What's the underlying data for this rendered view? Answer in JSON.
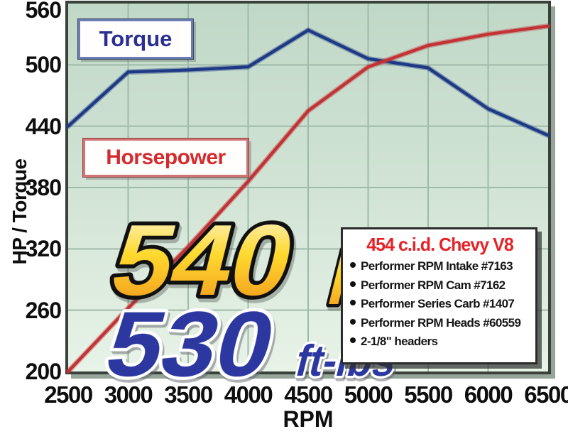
{
  "chart_data": {
    "type": "line",
    "title": "",
    "xlabel": "RPM",
    "ylabel": "HP / Torque",
    "x": [
      2500,
      3000,
      3500,
      4000,
      4500,
      5000,
      5500,
      6000,
      6500
    ],
    "xlim": [
      2500,
      6500
    ],
    "ylim": [
      200,
      560
    ],
    "xticks": [
      2500,
      3000,
      3500,
      4000,
      4500,
      5000,
      5500,
      6000,
      6500
    ],
    "yticks": [
      560,
      500,
      440,
      380,
      320,
      260,
      200
    ],
    "grid": true,
    "legend_position": "inline-labels",
    "series": [
      {
        "name": "Torque",
        "color": "#1d3884",
        "values": [
          440,
          493,
          495,
          498,
          534,
          506,
          497,
          457,
          431
        ]
      },
      {
        "name": "Horsepower",
        "color": "#c23134",
        "values": [
          200,
          262,
          322,
          386,
          455,
          498,
          519,
          530,
          538
        ]
      }
    ]
  },
  "legend": {
    "torque_label": "Torque",
    "horsepower_label": "Horsepower"
  },
  "callouts": {
    "hp_value": "540",
    "hp_unit": "HP",
    "torque_value": "530",
    "torque_unit": "ft-lbs"
  },
  "spec_box": {
    "title": "454 c.i.d. Chevy V8",
    "items": [
      "Performer RPM Intake #7163",
      "Performer RPM Cam #7162",
      "Performer Series Carb #1407",
      "Performer RPM Heads #60559",
      "2-1/8\" headers"
    ]
  },
  "colors": {
    "torque_curve": "#1d3884",
    "horsepower_curve": "#c23134",
    "torque_text": "#2b2f92",
    "horsepower_text": "#d62b2e",
    "spec_title_red": "#e52227",
    "gold_top": "#fbf7e2",
    "gold_mid": "#ffd92e",
    "gold_bottom": "#ef8f1a",
    "callout_blue": "#2c38a0"
  }
}
